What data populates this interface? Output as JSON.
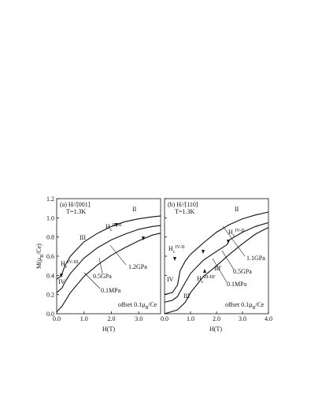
{
  "chart_data": [
    {
      "type": "line",
      "title": "(a) H//[001]",
      "subtitle": "T=1.3K",
      "ylabel": {
        "text": "M(μ",
        "sub": "B",
        "after": "/Ce)"
      },
      "xlabel": "H(T)",
      "xlim": [
        0,
        3.8
      ],
      "ylim": [
        0,
        1.2
      ],
      "xticks": [
        {
          "value": 0,
          "label": "0.0"
        },
        {
          "value": 1,
          "label": "1.0"
        },
        {
          "value": 2,
          "label": "2.0"
        },
        {
          "value": 3,
          "label": "3.0"
        }
      ],
      "yticks": [
        {
          "value": 0,
          "label": "0.0"
        },
        0.2,
        0.4,
        0.6,
        0.8,
        {
          "value": 1,
          "label": "1.0"
        },
        1.2
      ],
      "series": [
        {
          "name": "1.2GPa",
          "color": "#111",
          "x": [
            0,
            0.1,
            0.2,
            0.3,
            0.5,
            1.0,
            1.5,
            2.0,
            2.5,
            3.0,
            3.5,
            3.8
          ],
          "values": [
            0.36,
            0.38,
            0.42,
            0.5,
            0.6,
            0.75,
            0.84,
            0.91,
            0.96,
            0.99,
            1.01,
            1.02
          ]
        },
        {
          "name": "0.5GPa",
          "color": "#111",
          "x": [
            0,
            0.2,
            0.3,
            0.5,
            1.0,
            1.5,
            2.0,
            2.5,
            3.0,
            3.5,
            3.8
          ],
          "values": [
            0.22,
            0.27,
            0.33,
            0.42,
            0.58,
            0.69,
            0.77,
            0.83,
            0.88,
            0.91,
            0.92
          ]
        },
        {
          "name": "0.1MPa",
          "color": "#111",
          "x": [
            0,
            0.2,
            0.5,
            1.0,
            1.5,
            2.0,
            2.5,
            3.0,
            3.5,
            3.8
          ],
          "values": [
            0.02,
            0.08,
            0.22,
            0.39,
            0.51,
            0.61,
            0.69,
            0.76,
            0.82,
            0.84
          ]
        }
      ],
      "annotations": [
        {
          "text": "II"
        },
        {
          "text": "III"
        },
        {
          "text": "IV"
        },
        {
          "text": "H",
          "sub": "c",
          "sup": "III-II"
        },
        {
          "text": "H",
          "sub": "c",
          "sup": "IV-III"
        },
        {
          "text": "offset 0.1μ",
          "sub": "B",
          "after": "/Ce"
        }
      ]
    },
    {
      "type": "line",
      "title": "(b) H//[110]",
      "subtitle": "T=1.3K",
      "xlabel": "H(T)",
      "xlim": [
        0,
        4
      ],
      "ylim": [
        0,
        1.2
      ],
      "xticks": [
        {
          "value": 0,
          "label": "0.0"
        },
        {
          "value": 1,
          "label": "1.0"
        },
        {
          "value": 2,
          "label": "2.0"
        },
        {
          "value": 3,
          "label": "3.0"
        },
        {
          "value": 4,
          "label": "4.0"
        }
      ],
      "yticks": [
        0,
        0.2,
        0.4,
        0.6,
        0.8,
        1,
        1.2
      ],
      "series": [
        {
          "name": "1.1GPa",
          "color": "#111",
          "x": [
            0,
            0.3,
            0.5,
            0.6,
            0.8,
            1.0,
            1.5,
            2.0,
            2.5,
            3.0,
            3.5,
            4.0
          ],
          "values": [
            0.2,
            0.22,
            0.3,
            0.45,
            0.55,
            0.62,
            0.74,
            0.85,
            0.93,
            0.99,
            1.03,
            1.06
          ]
        },
        {
          "name": "0.5GPa",
          "color": "#111",
          "x": [
            0,
            0.3,
            0.5,
            0.7,
            1.0,
            1.5,
            2.0,
            2.4,
            2.5,
            3.0,
            3.5,
            4.0
          ],
          "values": [
            0.12,
            0.14,
            0.18,
            0.28,
            0.42,
            0.56,
            0.65,
            0.72,
            0.77,
            0.85,
            0.91,
            0.95
          ]
        },
        {
          "name": "0.1MPa",
          "color": "#111",
          "x": [
            0,
            0.5,
            0.8,
            1.0,
            1.5,
            2.0,
            2.5,
            3.0,
            3.5,
            4.0
          ],
          "values": [
            0,
            0.04,
            0.12,
            0.22,
            0.39,
            0.5,
            0.62,
            0.73,
            0.83,
            0.9
          ]
        }
      ],
      "annotations": [
        {
          "text": "II"
        },
        {
          "text": "III'"
        },
        {
          "text": "IV"
        },
        {
          "text": "III"
        },
        {
          "text": "H",
          "sub": "c",
          "sup": "IV-II"
        },
        {
          "text": "H",
          "sub": "c",
          "sup": "III-III'"
        },
        {
          "text": "H",
          "sub": "c",
          "sup": "IV-II"
        },
        {
          "text": "offset 0.1μ",
          "sub": "B",
          "after": "/Ce"
        }
      ]
    }
  ]
}
